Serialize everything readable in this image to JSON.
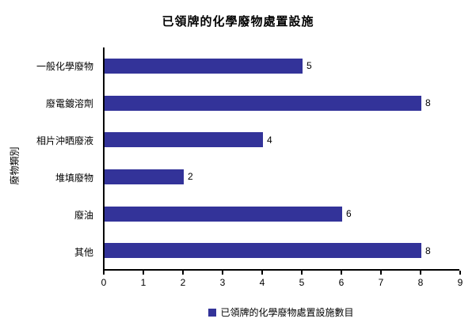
{
  "chart_data": {
    "type": "bar",
    "orientation": "horizontal",
    "title": "已領牌的化學廢物處置設施",
    "ylabel": "廢物類別",
    "xlabel": "",
    "categories": [
      "一般化學廢物",
      "廢電鍍溶劑",
      "相片沖晒廢液",
      "堆填廢物",
      "廢油",
      "其他"
    ],
    "values": [
      5,
      8,
      4,
      2,
      6,
      8
    ],
    "data_labels": [
      "5",
      "8",
      "4",
      "2",
      "6",
      "8"
    ],
    "xlim": [
      0,
      9
    ],
    "xticks": [
      "0",
      "1",
      "2",
      "3",
      "4",
      "5",
      "6",
      "7",
      "8",
      "9"
    ],
    "grid": false,
    "legend": "已領牌的化學廢物處置設施數目",
    "legend_position": "bottom",
    "bar_color": "#333399",
    "axis_color": "#000000",
    "background_color": "#ffffff"
  }
}
